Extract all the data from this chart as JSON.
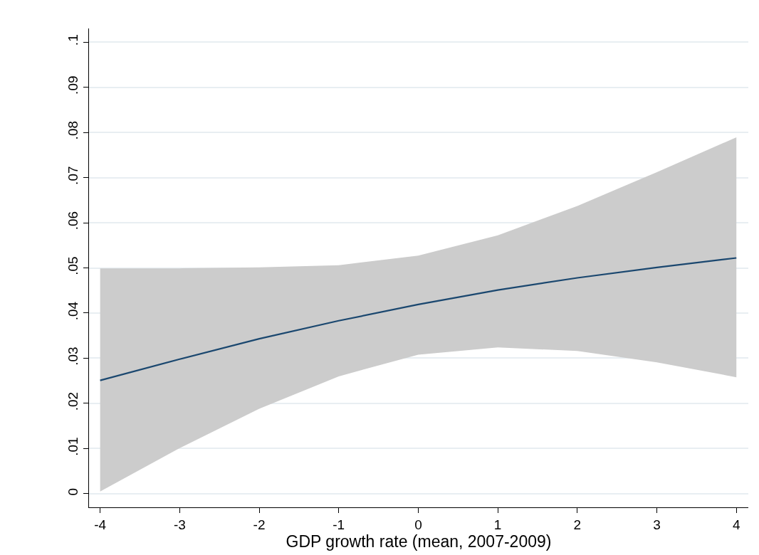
{
  "chart_data": {
    "type": "line",
    "xlabel": "GDP growth rate (mean, 2007-2009)",
    "x": [
      -4,
      -3,
      -2,
      -1,
      0,
      1,
      2,
      3,
      4
    ],
    "series": [
      {
        "color": "#1a476f",
        "values": [
          0.0251,
          0.0298,
          0.0343,
          0.0383,
          0.0419,
          0.0451,
          0.0478,
          0.0501,
          0.0522
        ],
        "lower": [
          0.0005,
          0.0101,
          0.0188,
          0.026,
          0.0308,
          0.0324,
          0.0316,
          0.0291,
          0.0258
        ],
        "upper": [
          0.0499,
          0.0499,
          0.0501,
          0.0506,
          0.0527,
          0.0572,
          0.0637,
          0.0712,
          0.0789
        ]
      }
    ],
    "xlim": [
      -4.14,
      4.15
    ],
    "ylim": [
      -0.003,
      0.103
    ],
    "xticks": [
      -4,
      -3,
      -2,
      -1,
      0,
      1,
      2,
      3,
      4
    ],
    "yticks": [
      {
        "value": 0,
        "label": "0"
      },
      {
        "value": 0.01,
        "label": ".01"
      },
      {
        "value": 0.02,
        "label": ".02"
      },
      {
        "value": 0.03,
        "label": ".03"
      },
      {
        "value": 0.04,
        "label": ".04"
      },
      {
        "value": 0.05,
        "label": ".05"
      },
      {
        "value": 0.06,
        "label": ".06"
      },
      {
        "value": 0.07,
        "label": ".07"
      },
      {
        "value": 0.08,
        "label": ".08"
      },
      {
        "value": 0.09,
        "label": ".09"
      },
      {
        "value": 0.1,
        "label": ".1"
      }
    ],
    "grid": "y",
    "marker": "none",
    "line_style": "solid"
  }
}
